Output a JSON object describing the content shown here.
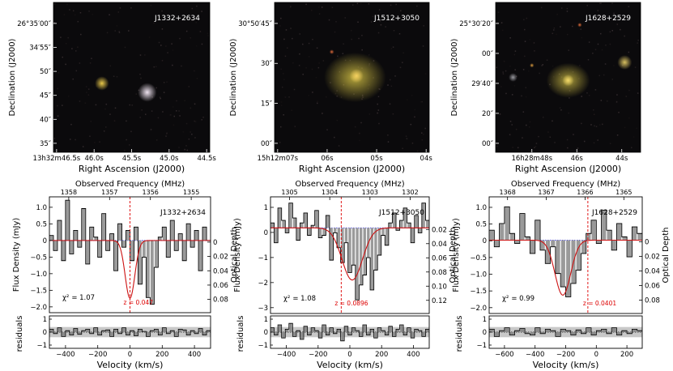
{
  "panels": [
    {
      "name": "J1332+2634",
      "image": {
        "label": "J1332+2634",
        "ylabel": "Declination (J2000)",
        "xlabel": "Right Ascension (J2000)",
        "ra_ticks": [
          "13h32m46.5s",
          "46.0s",
          "45.5s",
          "45.0s",
          "44.5s"
        ],
        "dec_ticks": [
          "26°35′00″",
          "34′55″",
          "50″",
          "45″",
          "40″",
          "35″"
        ],
        "sources": [
          {
            "u": 0.31,
            "v": 0.54,
            "r": 0.045,
            "color": "#e8c84a"
          },
          {
            "u": 0.6,
            "v": 0.6,
            "r": 0.06,
            "color": "#efe3f0"
          }
        ]
      },
      "spectrum": {
        "top_label": "Observed Frequency (MHz)",
        "freq_ticks": [
          "1358",
          "1357",
          "1356",
          "1355"
        ],
        "ylabel": "Flux Density (mJy)",
        "right_label": "Optical Depth",
        "y_ticks": [
          "1.0",
          "0.5",
          "0",
          "−0.5",
          "−1.0",
          "−1.5",
          "−2.0"
        ],
        "tau_ticks": [
          "0",
          "0.02",
          "0.04",
          "0.06",
          "0.08"
        ],
        "xlim": [
          -500,
          500
        ],
        "ylim": [
          -2.15,
          1.3
        ],
        "chi2": "= 1.07",
        "zlabel": "z = 0.047",
        "fit": {
          "center": 0,
          "amp": -1.72,
          "sigma": 30
        },
        "values": [
          0.15,
          -0.3,
          0.6,
          -0.6,
          1.2,
          -0.4,
          0.3,
          -0.2,
          0.95,
          -0.7,
          0.4,
          0.1,
          -0.5,
          0.8,
          -0.3,
          0.2,
          -0.9,
          0.5,
          -0.2,
          0.3,
          -0.6,
          0.4,
          -1.3,
          -0.5,
          -1.7,
          -1.9,
          -0.8,
          0.1,
          0.4,
          -0.5,
          0.6,
          -0.3,
          0.2,
          -0.6,
          0.5,
          -0.2,
          0.3,
          -0.9,
          0.4,
          0.0
        ]
      },
      "residuals": {
        "ylabel": "residuals",
        "xlabel": "Velocity (km/s)",
        "x_ticks": [
          "−400",
          "−200",
          "0",
          "200",
          "400"
        ],
        "y_ticks": [
          "1",
          "0",
          "−1"
        ],
        "values": [
          0.2,
          -0.1,
          0.3,
          -0.3,
          0.1,
          -0.2,
          0.25,
          -0.15,
          0.1,
          0.2,
          -0.1,
          0.3,
          -0.2,
          0.1,
          0.15,
          -0.3,
          0.2,
          -0.1,
          0.3,
          -0.2,
          0.1,
          -0.25,
          0.2,
          0.05,
          -0.3,
          0.1,
          0.2,
          -0.2,
          0.3,
          -0.1,
          0.1,
          -0.3,
          0.2,
          0.15,
          -0.2,
          0.1,
          -0.1,
          0.25,
          -0.2,
          0.1
        ]
      }
    },
    {
      "name": "J1512+3050",
      "image": {
        "label": "J1512+3050",
        "ylabel": "Declination (J2000)",
        "xlabel": "Right Ascension (J2000)",
        "ra_ticks": [
          "15h12m07s",
          "06s",
          "05s",
          "04s"
        ],
        "dec_ticks": [
          "30°50′45″",
          "30″",
          "15″",
          "00″"
        ],
        "sources": [
          {
            "u": 0.52,
            "v": 0.5,
            "r": 0.16,
            "color": "#b8a83c"
          },
          {
            "u": 0.53,
            "v": 0.49,
            "r": 0.045,
            "color": "#f4d060"
          },
          {
            "u": 0.37,
            "v": 0.33,
            "r": 0.015,
            "color": "#e06a3a"
          }
        ]
      },
      "spectrum": {
        "top_label": "Observed Frequency (MHz)",
        "freq_ticks": [
          "1305",
          "1304",
          "1303",
          "1302"
        ],
        "ylabel": "Flux Density (mJy)",
        "right_label": "Optical Depth",
        "y_ticks": [
          "1",
          "0",
          "−1",
          "−2",
          "−3"
        ],
        "tau_ticks": [
          "0.02",
          "0.04",
          "0.06",
          "0.08",
          "0.10",
          "0.12"
        ],
        "xlim": [
          -450,
          560
        ],
        "ylim": [
          -3.45,
          1.25
        ],
        "chi2": "= 1.08",
        "zlabel": "z = 0.0896",
        "fit": {
          "center": 70,
          "amp": -2.1,
          "sigma": 65
        },
        "values": [
          0.2,
          -0.6,
          0.8,
          0.3,
          -0.2,
          1.0,
          0.4,
          -0.5,
          0.2,
          0.6,
          -0.3,
          0.1,
          0.7,
          -0.4,
          -0.3,
          0.5,
          -1.3,
          -0.2,
          -0.8,
          -1.4,
          -0.6,
          -1.8,
          -1.5,
          -2.9,
          -2.3,
          -1.9,
          -1.2,
          -2.5,
          -1.7,
          -1.1,
          -0.3,
          -0.7,
          0.2,
          0.6,
          -0.1,
          0.3,
          0.8,
          0.2,
          -0.6,
          0.5,
          -0.2,
          1.0,
          0.3
        ]
      },
      "residuals": {
        "ylabel": "residuals",
        "xlabel": "Velocity (km/s)",
        "x_ticks": [
          "−400",
          "−200",
          "0",
          "200",
          "400"
        ],
        "y_ticks": [
          "1",
          "0",
          "−1"
        ],
        "values": [
          0.3,
          -0.2,
          0.5,
          -0.4,
          0.2,
          0.6,
          -0.3,
          0.1,
          -0.5,
          0.4,
          -0.2,
          0.3,
          0.1,
          -0.4,
          0.5,
          -0.2,
          0.3,
          -0.1,
          0.2,
          -0.6,
          0.4,
          -0.2,
          0.3,
          0.1,
          -0.3,
          0.5,
          -0.2,
          0.2,
          -0.4,
          0.3,
          0.1,
          -0.2,
          0.4,
          -0.3,
          0.2,
          0.5,
          -0.2,
          0.3,
          -0.4,
          0.2,
          0.1,
          -0.3,
          0.2
        ]
      }
    },
    {
      "name": "J1628+2529",
      "image": {
        "label": "J1628+2529",
        "ylabel": "Declination (J2000)",
        "xlabel": "Right Ascension (J2000)",
        "ra_ticks": [
          "16h28m48s",
          "46s",
          "44s"
        ],
        "dec_ticks": [
          "25°30′20″",
          "00″",
          "29′40″",
          "20″",
          "00″"
        ],
        "sources": [
          {
            "u": 0.5,
            "v": 0.52,
            "r": 0.12,
            "color": "#a89a3a"
          },
          {
            "u": 0.5,
            "v": 0.52,
            "r": 0.04,
            "color": "#f2d868"
          },
          {
            "u": 0.89,
            "v": 0.4,
            "r": 0.05,
            "color": "#d8c060"
          },
          {
            "u": 0.12,
            "v": 0.5,
            "r": 0.03,
            "color": "#9a9aa0"
          },
          {
            "u": 0.58,
            "v": 0.15,
            "r": 0.015,
            "color": "#e8703a"
          },
          {
            "u": 0.25,
            "v": 0.42,
            "r": 0.015,
            "color": "#e0a040"
          }
        ]
      },
      "spectrum": {
        "top_label": "Observed Frequency (MHz)",
        "freq_ticks": [
          "1368",
          "1367",
          "1366",
          "1365"
        ],
        "ylabel": "Flux Density (mJy)",
        "right_label": "Optical Depth",
        "y_ticks": [
          "1.0",
          "0.5",
          "0",
          "−0.5",
          "−1.0",
          "−1.5",
          "−2.0"
        ],
        "tau_ticks": [
          "0",
          "0.02",
          "0.04",
          "0.06",
          "0.08"
        ],
        "xlim": [
          -690,
          380
        ],
        "ylim": [
          -2.2,
          1.3
        ],
        "chi2": "= 0.99",
        "zlabel": "z = 0.0401",
        "fit": {
          "center": -175,
          "amp": -1.65,
          "sigma": 55
        },
        "values": [
          0.3,
          -0.2,
          0.5,
          1.0,
          0.2,
          -0.1,
          0.8,
          0.1,
          -0.4,
          0.6,
          -0.3,
          -0.7,
          -0.2,
          -1.0,
          -1.4,
          -1.7,
          -1.3,
          -0.9,
          -0.4,
          0.2,
          0.6,
          -0.1,
          0.9,
          0.3,
          -0.3,
          0.5,
          0.1,
          -0.5,
          0.4,
          0.2
        ]
      },
      "residuals": {
        "ylabel": "residuals",
        "xlabel": "Velocity (km/s)",
        "x_ticks": [
          "−600",
          "−400",
          "−200",
          "0",
          "200"
        ],
        "y_ticks": [
          "1",
          "0",
          "−1"
        ],
        "values": [
          0.2,
          -0.3,
          0.1,
          0.3,
          -0.2,
          0.1,
          0.25,
          -0.1,
          -0.2,
          0.3,
          -0.1,
          0.2,
          0.1,
          -0.3,
          0.2,
          0.1,
          -0.2,
          0.15,
          -0.1,
          0.3,
          -0.2,
          0.1,
          0.2,
          -0.1,
          0.3,
          -0.2,
          0.1,
          -0.1,
          0.2,
          0.1
        ]
      }
    }
  ],
  "chi2_symbol": "χ²",
  "colors": {
    "spectrum": "#000000",
    "fit": "#cc1111",
    "zero_line": "#3333ff",
    "redshift": "#dd0000",
    "residual_band": "#c8c8c8"
  }
}
